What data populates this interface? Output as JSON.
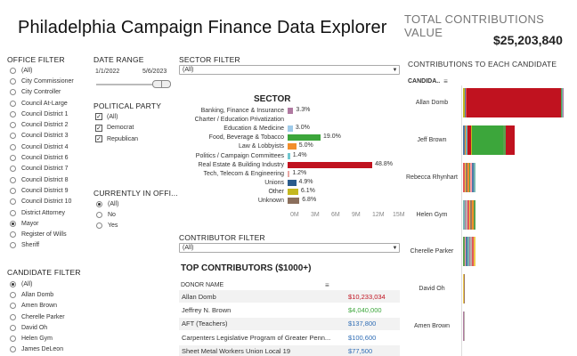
{
  "app": {
    "title": "Philadelphia Campaign Finance Data Explorer",
    "total_label": "TOTAL CONTRIBUTIONS VALUE",
    "total_value": "$25,203,840"
  },
  "office_filter": {
    "title": "OFFICE FILTER",
    "selected": "Mayor",
    "options": [
      "(All)",
      "City Commissioner",
      "City Controller",
      "Council At-Large",
      "Council District 1",
      "Council District 2",
      "Council District 3",
      "Council District 4",
      "Council District 6",
      "Council District 7",
      "Council District 8",
      "Council District 9",
      "Council District 10",
      "District Attorney",
      "Mayor",
      "Register of Wills",
      "Sheriff"
    ]
  },
  "date_range": {
    "title": "DATE RANGE",
    "start": "1/1/2022",
    "end": "5/6/2023"
  },
  "political_party": {
    "title": "POLITICAL PARTY",
    "options": [
      "(All)",
      "Democrat",
      "Republican"
    ]
  },
  "currently_in_office": {
    "title": "CURRENTLY IN OFFI...",
    "selected": "(All)",
    "options": [
      "(All)",
      "No",
      "Yes"
    ]
  },
  "candidate_filter": {
    "title": "CANDIDATE FILTER",
    "selected": "(All)",
    "options": [
      "(All)",
      "Allan Domb",
      "Amen Brown",
      "Cherelle Parker",
      "David Oh",
      "Helen Gym",
      "James DeLeon"
    ]
  },
  "sector_filter": {
    "title": "SECTOR FILTER",
    "value": "(All)"
  },
  "contributor_filter": {
    "title": "CONTRIBUTOR FILTER",
    "value": "(All)"
  },
  "chart_data": [
    {
      "type": "bar",
      "title": "SECTOR",
      "orientation": "horizontal",
      "categories": [
        "Banking, Finance & Insurance",
        "Charter / Education Privatization",
        "Education & Medicine",
        "Food, Beverage & Tobacco",
        "Law & Lobbyists",
        "Politics / Campaign Committees",
        "Real Estate & Building Industry",
        "Tech, Telecom & Engineering",
        "Unions",
        "Other",
        "Unknown"
      ],
      "values": [
        0.83,
        0,
        0.76,
        4.79,
        1.26,
        0.35,
        12.3,
        0.3,
        1.23,
        1.54,
        1.71
      ],
      "labels": [
        "3.3%",
        "",
        "3.0%",
        "19.0%",
        "5.0%",
        "1.4%",
        "48.8%",
        "1.2%",
        "4.9%",
        "6.1%",
        "6.8%"
      ],
      "colors": [
        "#b07aa1",
        "#cccccc",
        "#9ecae9",
        "#3ca63b",
        "#f28e2b",
        "#6fc7d0",
        "#c0121f",
        "#e9a7a3",
        "#2a5b8c",
        "#c4b81e",
        "#8b6f5c"
      ],
      "xticks": [
        "0M",
        "3M",
        "6M",
        "9M",
        "12M",
        "15M"
      ],
      "xlim": [
        0,
        15
      ]
    },
    {
      "type": "bar",
      "title": "CONTRIBUTIONS TO EACH CANDIDATE",
      "orientation": "horizontal",
      "stacked": true,
      "column_header": "CANDIDA..",
      "categories": [
        "Allan Domb",
        "Jeff Brown",
        "Rebecca Rhynhart",
        "Helen Gym",
        "Cherelle Parker",
        "David Oh",
        "Amen Brown"
      ],
      "totals_relative": [
        1.0,
        0.51,
        0.12,
        0.12,
        0.12,
        0.015,
        0.015
      ]
    }
  ],
  "top_contributors": {
    "title": "TOP CONTRIBUTORS ($1000+)",
    "column_header": "DONOR NAME",
    "rows": [
      {
        "name": "Allan Domb",
        "amount": "$10,233,034",
        "color": "#c0121f"
      },
      {
        "name": "Jeffrey N. Brown",
        "amount": "$4,040,000",
        "color": "#3ca63b"
      },
      {
        "name": "AFT (Teachers)",
        "amount": "$137,800",
        "color": "#2f6db5"
      },
      {
        "name": "Carpenters Legislative Program of Greater Penn...",
        "amount": "$100,600",
        "color": "#2f6db5"
      },
      {
        "name": "Sheet Metal Workers Union Local 19",
        "amount": "$77,500",
        "color": "#2f6db5"
      }
    ]
  }
}
